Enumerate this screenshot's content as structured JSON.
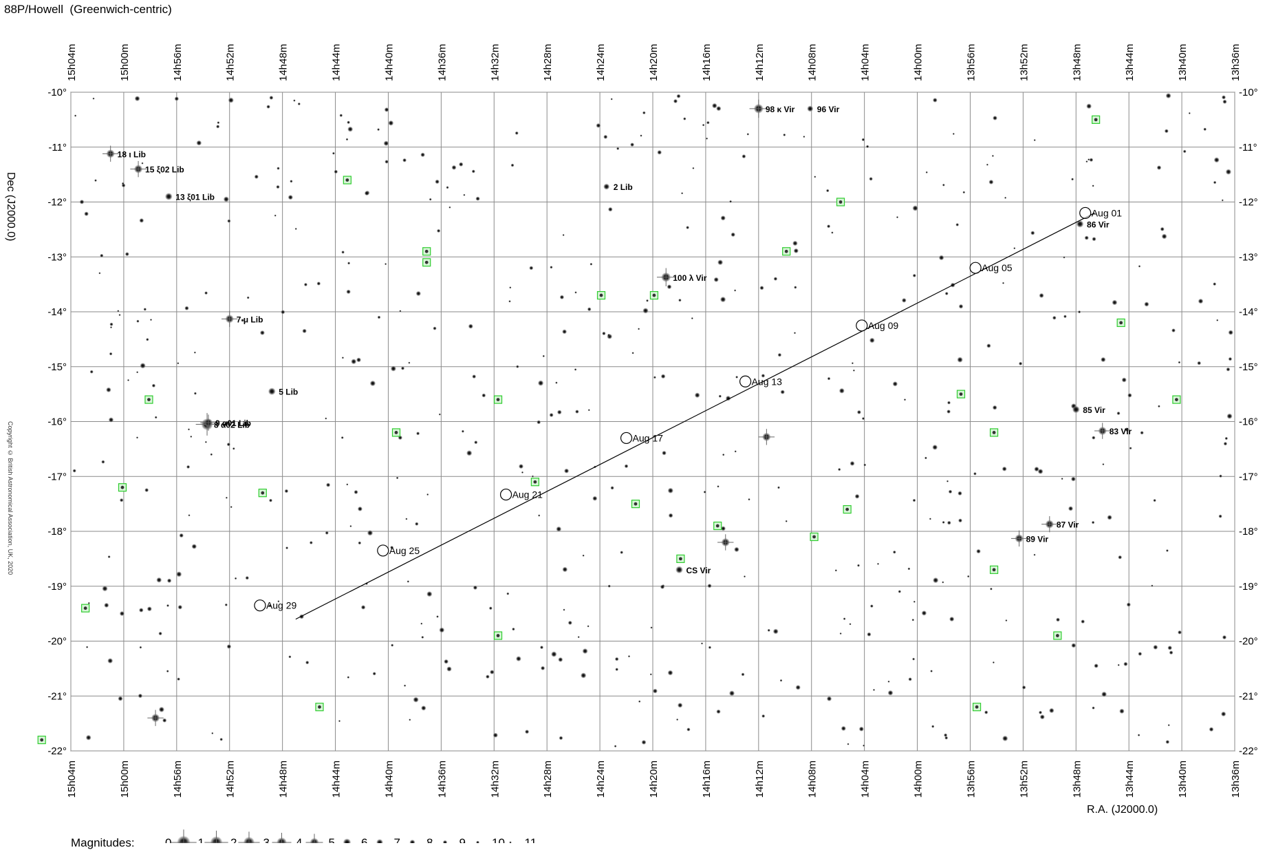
{
  "title": "88P/Howell  (Greenwich-centric)",
  "copyright": "Copyright © British Astronomical Association, UK, 2020",
  "magnitudes_label": "Magnitudes:",
  "chart_data": {
    "type": "scatter",
    "title": "88P/Howell  (Greenwich-centric)",
    "xlabel": "R.A. (J2000.0)",
    "ylabel": "Dec (J2000.0)",
    "x_reversed": true,
    "grid": true,
    "xlim": [
      "15h04m",
      "13h36m"
    ],
    "ylim": [
      -22,
      -10
    ],
    "x_ticks": [
      "15h04m",
      "15h00m",
      "14h56m",
      "14h52m",
      "14h48m",
      "14h44m",
      "14h40m",
      "14h36m",
      "14h32m",
      "14h28m",
      "14h24m",
      "14h20m",
      "14h16m",
      "14h12m",
      "14h08m",
      "14h04m",
      "14h00m",
      "13h56m",
      "13h52m",
      "13h48m",
      "13h44m",
      "13h40m",
      "13h36m"
    ],
    "y_ticks": [
      "-10°",
      "-11°",
      "-12°",
      "-13°",
      "-14°",
      "-15°",
      "-16°",
      "-17°",
      "-18°",
      "-19°",
      "-20°",
      "-21°",
      "-22°"
    ],
    "comet_path": [
      {
        "ra_min": 826.6,
        "dec": -12.2
      },
      {
        "ra_min": 887.0,
        "dec": -19.6
      }
    ],
    "epochs": [
      {
        "label": "Aug 01",
        "ra_min": 827.3,
        "dec": -12.2
      },
      {
        "label": "Aug 05",
        "ra_min": 835.6,
        "dec": -13.2
      },
      {
        "label": "Aug 09",
        "ra_min": 844.2,
        "dec": -14.25
      },
      {
        "label": "Aug 13",
        "ra_min": 853.0,
        "dec": -15.27
      },
      {
        "label": "Aug 17",
        "ra_min": 862.0,
        "dec": -16.3
      },
      {
        "label": "Aug 21",
        "ra_min": 871.1,
        "dec": -17.33
      },
      {
        "label": "Aug 25",
        "ra_min": 880.4,
        "dec": -18.35
      },
      {
        "label": "Aug 29",
        "ra_min": 889.7,
        "dec": -19.35
      }
    ],
    "named_stars": [
      {
        "label": "98 κ Vir",
        "ra_min": 852.0,
        "dec": -10.3,
        "mag": 4
      },
      {
        "label": "96 Vir",
        "ra_min": 848.1,
        "dec": -10.3,
        "mag": 7
      },
      {
        "label": "18 ι Lib",
        "ra_min": 901.0,
        "dec": -11.12,
        "mag": 5
      },
      {
        "label": "15 ξ02 Lib",
        "ra_min": 898.9,
        "dec": -11.4,
        "mag": 5
      },
      {
        "label": "13 ξ01 Lib",
        "ra_min": 896.6,
        "dec": -11.9,
        "mag": 6
      },
      {
        "label": "2 Lib",
        "ra_min": 863.5,
        "dec": -11.72,
        "mag": 7
      },
      {
        "label": "86 Vir",
        "ra_min": 827.7,
        "dec": -12.4,
        "mag": 6
      },
      {
        "label": "100 λ Vir",
        "ra_min": 859.0,
        "dec": -13.37,
        "mag": 4
      },
      {
        "label": "7 μ Lib",
        "ra_min": 892.0,
        "dec": -14.13,
        "mag": 5
      },
      {
        "label": "5 Lib",
        "ra_min": 888.8,
        "dec": -15.45,
        "mag": 6
      },
      {
        "label": "8 α02 Lib",
        "ra_min": 893.7,
        "dec": -16.05,
        "mag": 2
      },
      {
        "label": "9 α01 Lib",
        "ra_min": 893.6,
        "dec": -16.02,
        "mag": 5
      },
      {
        "label": "85 Vir",
        "ra_min": 828.0,
        "dec": -15.78,
        "mag": 6
      },
      {
        "label": "83 Vir",
        "ra_min": 826.0,
        "dec": -16.17,
        "mag": 5
      },
      {
        "label": "87 Vir",
        "ra_min": 830.0,
        "dec": -17.87,
        "mag": 5
      },
      {
        "label": "89 Vir",
        "ra_min": 832.3,
        "dec": -18.13,
        "mag": 5
      },
      {
        "label": "CS Vir",
        "ra_min": 858.0,
        "dec": -18.7,
        "mag": 6
      }
    ],
    "bright_unlabeled_stars": [
      {
        "ra_min": 851.4,
        "dec": -16.28,
        "mag": 5
      },
      {
        "ra_min": 854.5,
        "dec": -18.2,
        "mag": 5
      },
      {
        "ra_min": 897.6,
        "dec": -21.4,
        "mag": 5
      }
    ],
    "green_markers": [
      {
        "ra_min": 826.5,
        "dec": -10.5
      },
      {
        "ra_min": 883.1,
        "dec": -11.6
      },
      {
        "ra_min": 845.8,
        "dec": -12.0
      },
      {
        "ra_min": 877.1,
        "dec": -12.9
      },
      {
        "ra_min": 877.1,
        "dec": -13.1
      },
      {
        "ra_min": 849.9,
        "dec": -12.9
      },
      {
        "ra_min": 863.9,
        "dec": -13.7
      },
      {
        "ra_min": 859.9,
        "dec": -13.7
      },
      {
        "ra_min": 824.6,
        "dec": -14.2
      },
      {
        "ra_min": 898.1,
        "dec": -15.6
      },
      {
        "ra_min": 871.7,
        "dec": -15.6
      },
      {
        "ra_min": 836.7,
        "dec": -15.5
      },
      {
        "ra_min": 820.4,
        "dec": -15.6
      },
      {
        "ra_min": 879.4,
        "dec": -16.2
      },
      {
        "ra_min": 834.2,
        "dec": -16.2
      },
      {
        "ra_min": 900.1,
        "dec": -17.2
      },
      {
        "ra_min": 868.9,
        "dec": -17.1
      },
      {
        "ra_min": 889.5,
        "dec": -17.3
      },
      {
        "ra_min": 861.3,
        "dec": -17.5
      },
      {
        "ra_min": 845.3,
        "dec": -17.6
      },
      {
        "ra_min": 855.1,
        "dec": -17.9
      },
      {
        "ra_min": 847.8,
        "dec": -18.1
      },
      {
        "ra_min": 857.9,
        "dec": -18.5
      },
      {
        "ra_min": 834.2,
        "dec": -18.7
      },
      {
        "ra_min": 902.9,
        "dec": -19.4
      },
      {
        "ra_min": 871.7,
        "dec": -19.9
      },
      {
        "ra_min": 829.4,
        "dec": -19.9
      },
      {
        "ra_min": 885.2,
        "dec": -21.2
      },
      {
        "ra_min": 835.5,
        "dec": -21.2
      },
      {
        "ra_min": 906.2,
        "dec": -21.8
      }
    ],
    "magnitude_scale": [
      0,
      1,
      2,
      3,
      4,
      5,
      6,
      7,
      8,
      9,
      10,
      11
    ]
  }
}
